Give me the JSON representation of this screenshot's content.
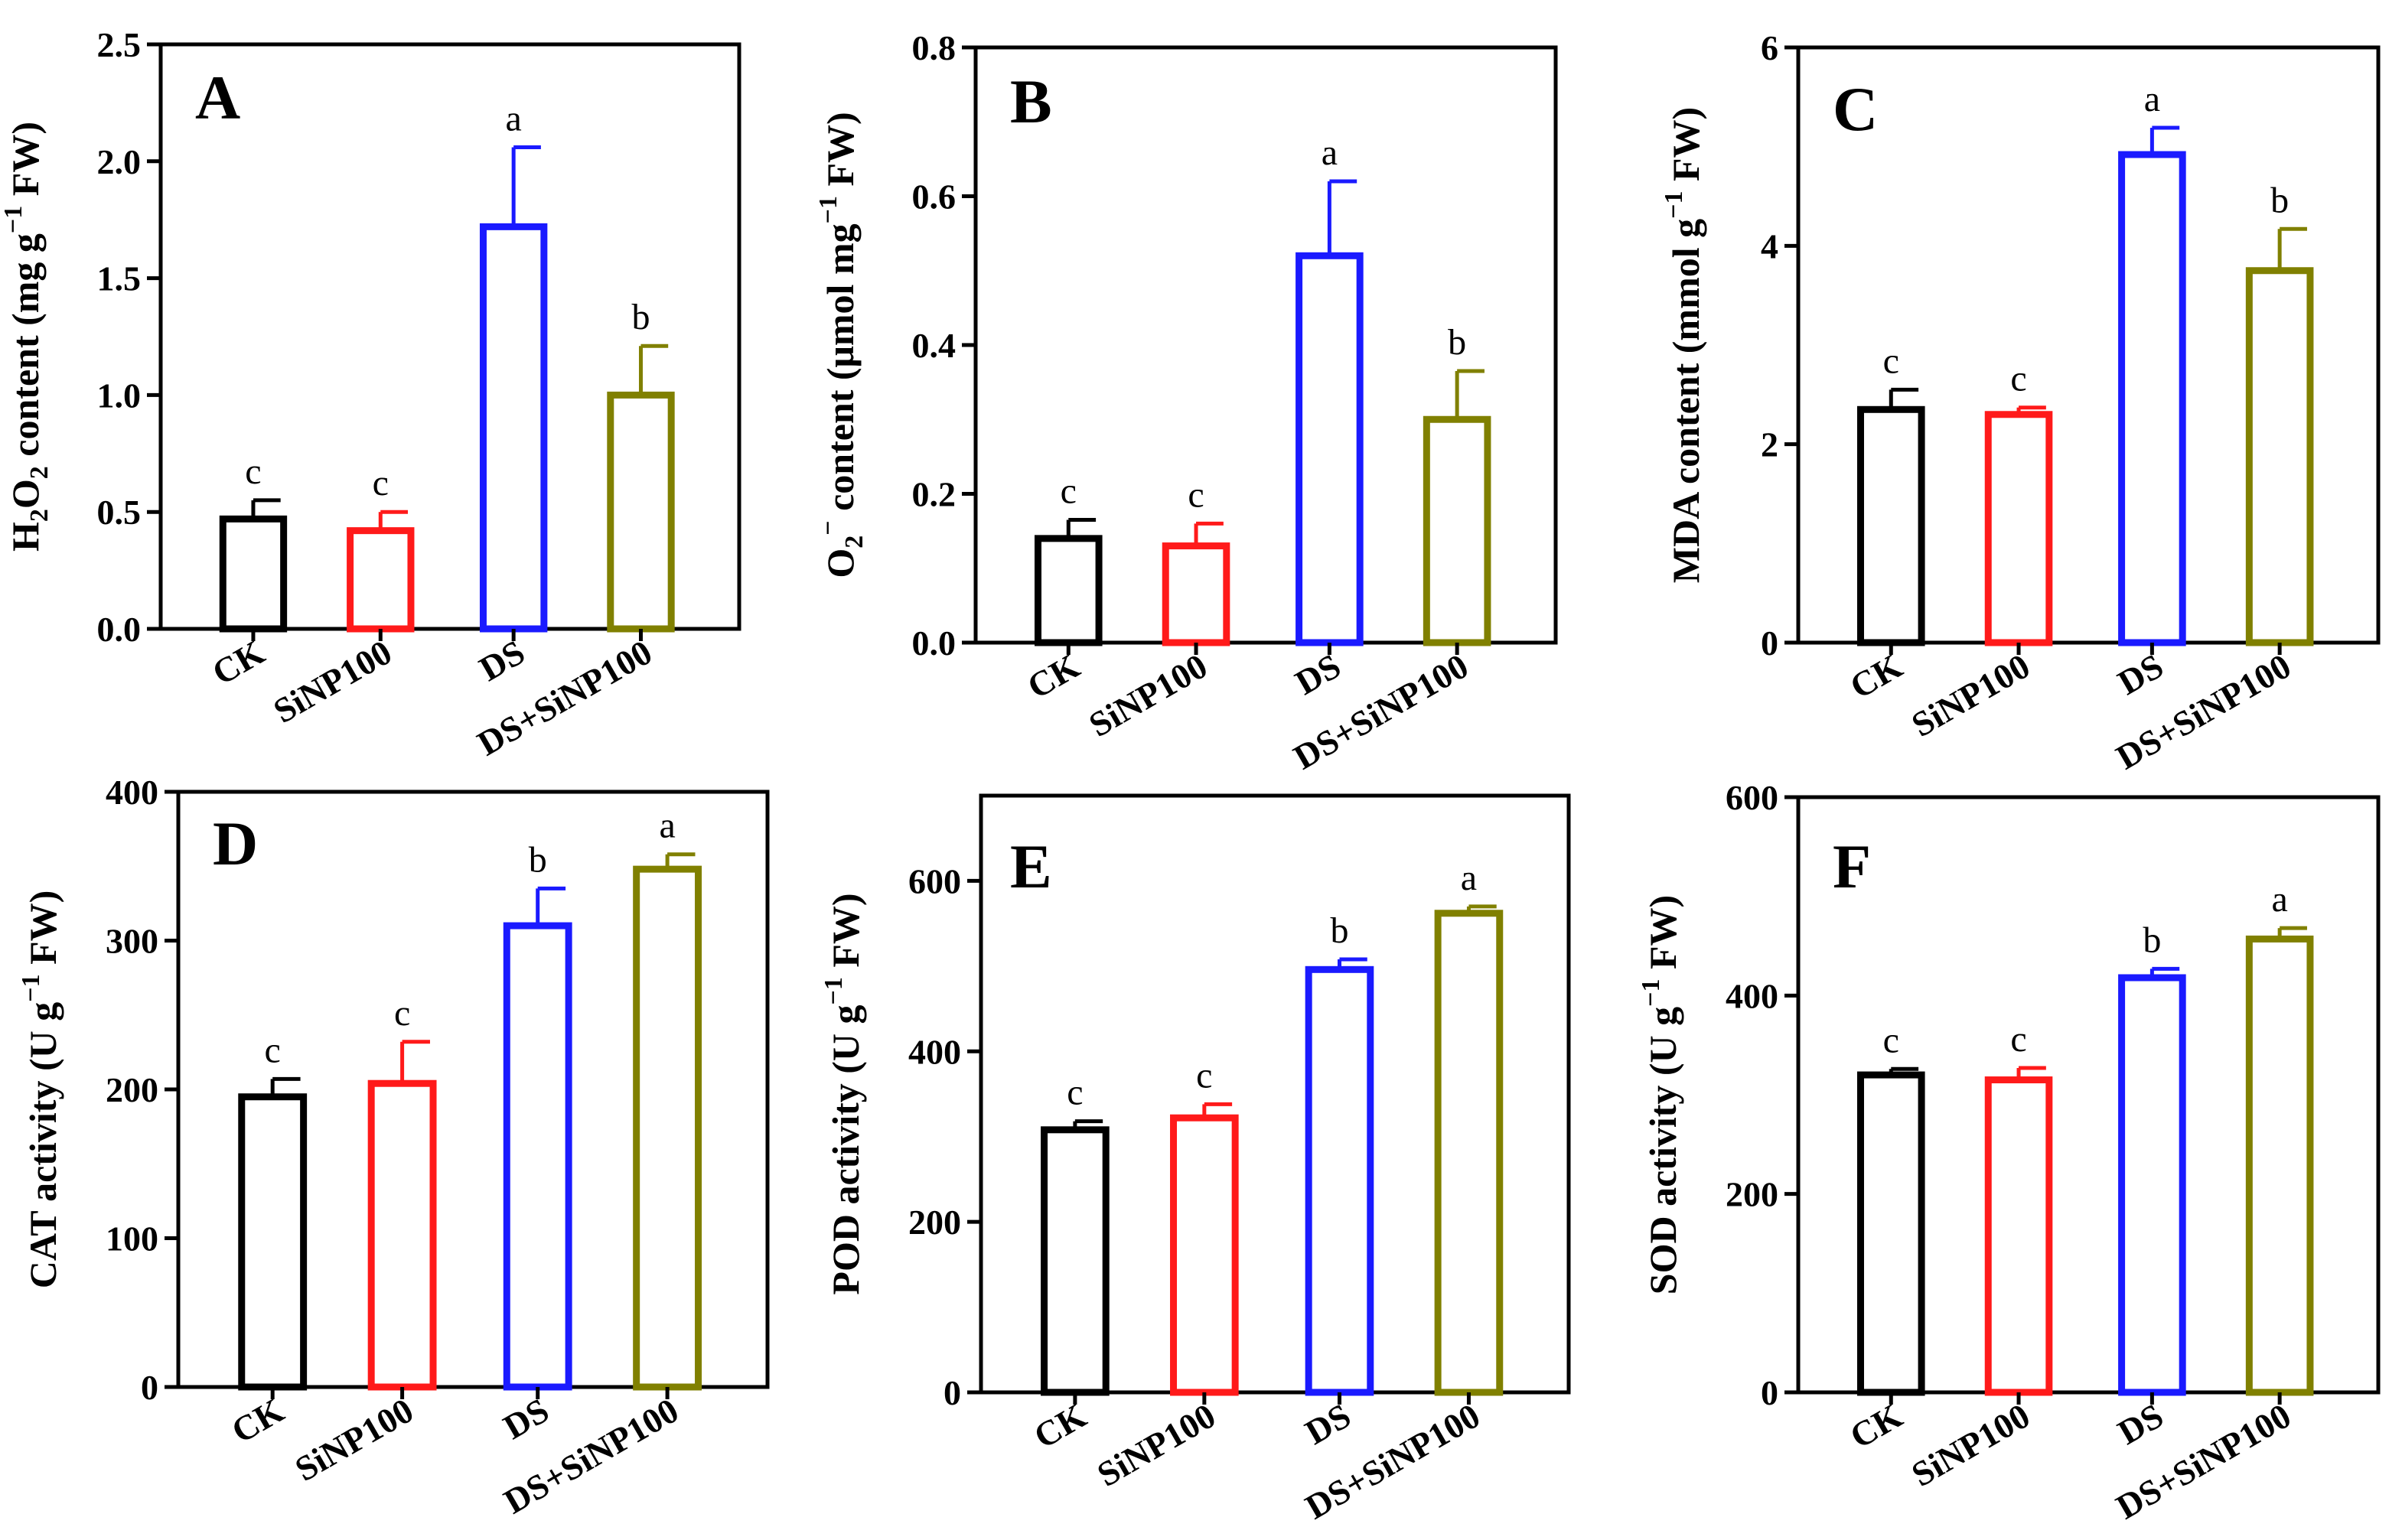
{
  "colors": {
    "CK": "#000000",
    "SiNP100": "#ff1a1a",
    "DS": "#1a1aff",
    "DS+SiNP100": "#808000"
  },
  "chart_data": [
    {
      "type": "bar",
      "panel": "A",
      "ylabel": {
        "prefix": "H",
        "sub1": "2",
        "mid": "O",
        "sub2": "2",
        "after": " content (mg g",
        "sup": "−1",
        "suffix": " FW)"
      },
      "categories": [
        "CK",
        "SiNP100",
        "DS",
        "DS+SiNP100"
      ],
      "values": [
        0.47,
        0.42,
        1.72,
        1.0
      ],
      "errors": [
        0.08,
        0.08,
        0.34,
        0.21
      ],
      "significance": [
        "c",
        "c",
        "a",
        "b"
      ],
      "ylim": [
        0,
        2.5
      ],
      "yticks": [
        "0.0",
        "0.5",
        "1.0",
        "1.5",
        "2.0",
        "2.5"
      ]
    },
    {
      "type": "bar",
      "panel": "B",
      "ylabel": {
        "prefix": "O",
        "sub1": "2",
        "sup0": "−",
        "after": " content (μmol mg",
        "sup": "−1",
        "suffix": " FW)"
      },
      "categories": [
        "CK",
        "SiNP100",
        "DS",
        "DS+SiNP100"
      ],
      "values": [
        0.14,
        0.13,
        0.52,
        0.3
      ],
      "errors": [
        0.025,
        0.03,
        0.1,
        0.065
      ],
      "significance": [
        "c",
        "c",
        "a",
        "b"
      ],
      "ylim": [
        0,
        0.8
      ],
      "yticks": [
        "0.0",
        "0.2",
        "0.4",
        "0.6",
        "0.8"
      ]
    },
    {
      "type": "bar",
      "panel": "C",
      "ylabel": {
        "prefix": "MDA content (mmol g",
        "sup": "−1",
        "suffix": " FW)"
      },
      "categories": [
        "CK",
        "SiNP100",
        "DS",
        "DS+SiNP100"
      ],
      "values": [
        2.35,
        2.3,
        4.92,
        3.75
      ],
      "errors": [
        0.2,
        0.07,
        0.27,
        0.42
      ],
      "significance": [
        "c",
        "c",
        "a",
        "b"
      ],
      "ylim": [
        0,
        6
      ],
      "yticks": [
        "0",
        "2",
        "4",
        "6"
      ]
    },
    {
      "type": "bar",
      "panel": "D",
      "ylabel": {
        "prefix": "CAT activity (U g",
        "sup": "−1",
        "suffix": " FW)"
      },
      "categories": [
        "CK",
        "SiNP100",
        "DS",
        "DS+SiNP100"
      ],
      "values": [
        195,
        204,
        310,
        348
      ],
      "errors": [
        12,
        28,
        25,
        10
      ],
      "significance": [
        "c",
        "c",
        "b",
        "a"
      ],
      "ylim": [
        0,
        400
      ],
      "yticks": [
        "0",
        "100",
        "200",
        "300",
        "400"
      ]
    },
    {
      "type": "bar",
      "panel": "E",
      "ylabel": {
        "prefix": "POD activity (U g",
        "sup": "−1",
        "suffix": " FW)"
      },
      "categories": [
        "CK",
        "SiNP100",
        "DS",
        "DS+SiNP100"
      ],
      "values": [
        308,
        322,
        496,
        562
      ],
      "errors": [
        10,
        16,
        12,
        8
      ],
      "significance": [
        "c",
        "c",
        "b",
        "a"
      ],
      "ylim": [
        0,
        700
      ],
      "yticks": [
        "0",
        "200",
        "400",
        "600"
      ]
    },
    {
      "type": "bar",
      "panel": "F",
      "ylabel": {
        "prefix": "SOD activity (U g",
        "sup": "−1",
        "suffix": " FW)"
      },
      "categories": [
        "CK",
        "SiNP100",
        "DS",
        "DS+SiNP100"
      ],
      "values": [
        320,
        315,
        418,
        457
      ],
      "errors": [
        6,
        12,
        9,
        11
      ],
      "significance": [
        "c",
        "c",
        "b",
        "a"
      ],
      "ylim": [
        0,
        600
      ],
      "yticks": [
        "0",
        "200",
        "400",
        "600"
      ]
    }
  ]
}
